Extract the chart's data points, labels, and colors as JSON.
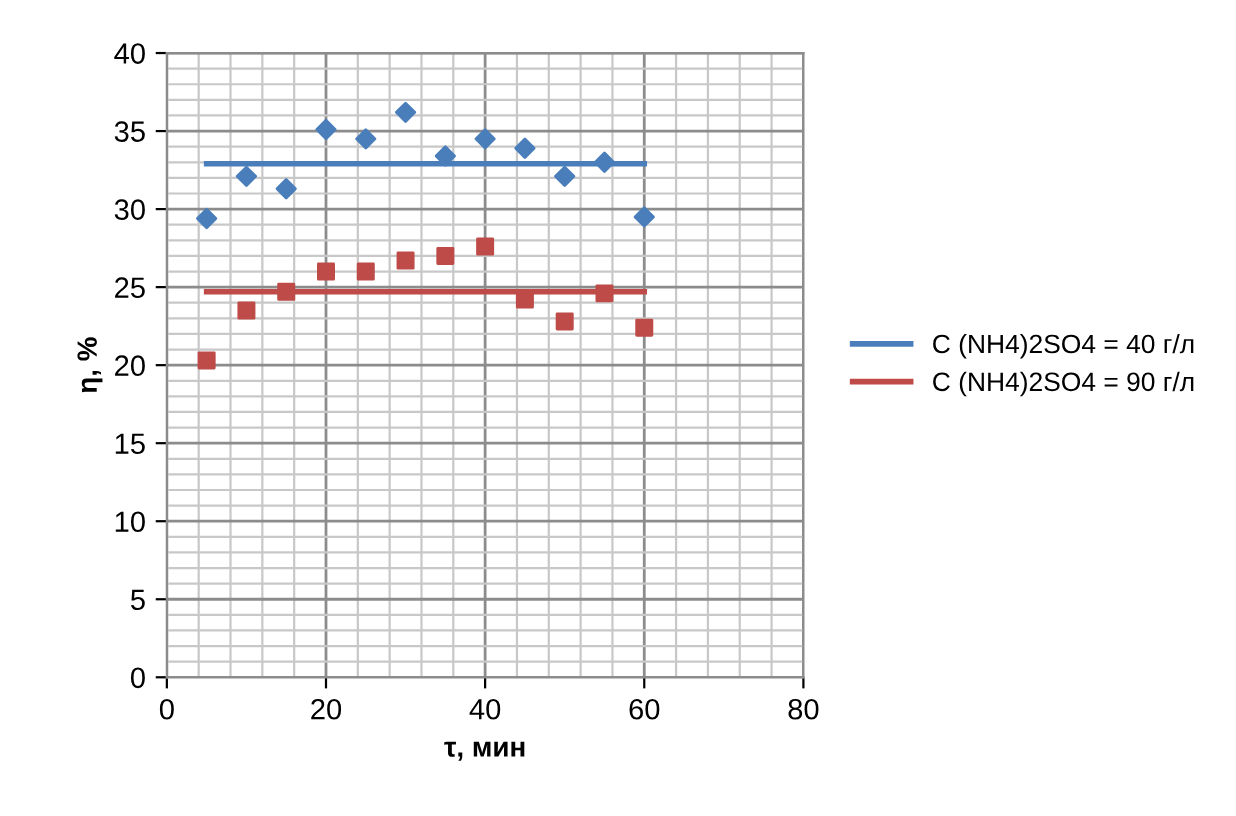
{
  "chart_data": {
    "type": "scatter",
    "xlabel": "τ, мин",
    "ylabel": "η, %",
    "xlim": [
      0,
      80
    ],
    "xticks": [
      0,
      20,
      40,
      60,
      80
    ],
    "ylim": [
      0,
      40
    ],
    "yticks": [
      0,
      5,
      10,
      15,
      20,
      25,
      30,
      35,
      40
    ],
    "grid": true,
    "legend": "right",
    "series": [
      {
        "marker": "diamond",
        "color": "#4a7ebb",
        "x": [
          5,
          10,
          15,
          20,
          25,
          30,
          35,
          40,
          45,
          50,
          55,
          60
        ],
        "values": [
          29.4,
          32.1,
          31.3,
          35.1,
          34.5,
          36.2,
          33.4,
          34.5,
          33.9,
          32.1,
          33.0,
          29.5
        ]
      },
      {
        "marker": "square",
        "color": "#be4b48",
        "x": [
          5,
          10,
          15,
          20,
          25,
          30,
          35,
          40,
          45,
          50,
          55,
          60
        ],
        "values": [
          20.3,
          23.5,
          24.7,
          26.0,
          26.0,
          26.7,
          27.0,
          27.6,
          24.2,
          22.8,
          24.6,
          22.4
        ]
      },
      {
        "type": "line",
        "name": "C (NH4)2SO4 = 40 г/л",
        "color": "#4a7ebb",
        "x": [
          5,
          60
        ],
        "values": [
          32.9,
          32.9
        ]
      },
      {
        "type": "line",
        "name": "C (NH4)2SO4 = 90 г/л",
        "color": "#be4b48",
        "x": [
          5,
          60
        ],
        "values": [
          24.7,
          24.7
        ]
      }
    ]
  }
}
